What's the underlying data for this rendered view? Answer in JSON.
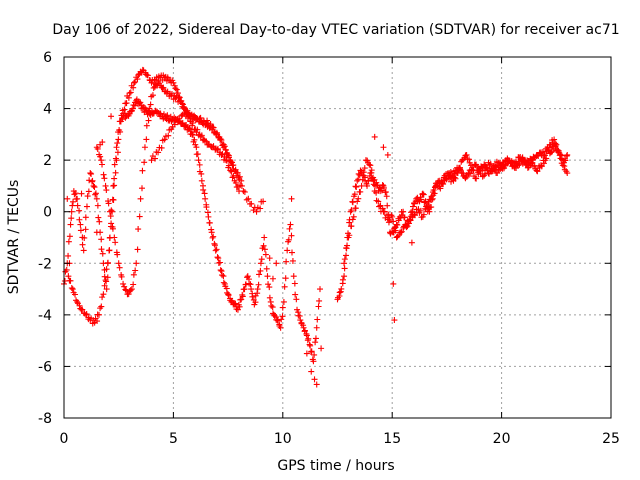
{
  "chart_data": {
    "type": "scatter",
    "title": "Day 106 of 2022, Sidereal Day-to-day VTEC variation (SDTVAR) for receiver ac71",
    "xlabel": "GPS time / hours",
    "ylabel": "SDTVAR / TECUs",
    "xlim": [
      0,
      25
    ],
    "ylim": [
      -8,
      6
    ],
    "xticks": [
      "0",
      "5",
      "10",
      "15",
      "20",
      "25"
    ],
    "yticks": [
      "-8",
      "-6",
      "-4",
      "-2",
      "0",
      "2",
      "4",
      "6"
    ],
    "grid": true,
    "marker": "+",
    "color": "#ff0000",
    "series": [
      {
        "name": "trace-1",
        "x": [
          0.0,
          0.15,
          0.3,
          0.45,
          0.6,
          0.75,
          0.9,
          1.05,
          1.2,
          1.35,
          1.5,
          1.65,
          1.8,
          1.95,
          2.1,
          2.25,
          2.4,
          2.55,
          2.7,
          2.85,
          3.0,
          3.15,
          3.3,
          3.45,
          3.6,
          3.75,
          3.9,
          4.05,
          4.2,
          4.35,
          4.5,
          4.65,
          4.8,
          4.95,
          5.1,
          5.25,
          5.4,
          5.55,
          5.7,
          5.85,
          6.0,
          6.15,
          6.3,
          6.45,
          6.6,
          6.75,
          6.9,
          7.05,
          7.2,
          7.35,
          7.5,
          7.65,
          7.8,
          7.95,
          8.1,
          8.25,
          8.4,
          8.55,
          8.7,
          8.85,
          9.0,
          9.15,
          9.3,
          9.45,
          9.6,
          9.75,
          9.9,
          10.05,
          10.2,
          10.35,
          10.5,
          10.65,
          10.8,
          10.95,
          11.1,
          11.25,
          11.4,
          11.55,
          11.7
        ],
        "values": [
          -2.8,
          -2.0,
          -0.5,
          0.8,
          0.5,
          -0.5,
          -1.5,
          0.2,
          1.5,
          1.0,
          0.5,
          -0.8,
          -2.0,
          -3.0,
          -1.0,
          1.0,
          2.5,
          3.5,
          3.8,
          3.7,
          3.8,
          4.0,
          4.3,
          4.2,
          4.0,
          3.9,
          3.8,
          3.8,
          3.9,
          3.8,
          3.7,
          3.7,
          3.6,
          3.6,
          3.6,
          3.5,
          3.4,
          3.3,
          3.2,
          3.0,
          2.6,
          2.0,
          1.2,
          0.5,
          -0.2,
          -0.8,
          -1.3,
          -1.8,
          -2.3,
          -2.8,
          -3.2,
          -3.5,
          -3.6,
          -3.8,
          -3.4,
          -3.0,
          -2.5,
          -3.0,
          -3.6,
          -3.0,
          -2.0,
          -1.0,
          -2.5,
          -3.5,
          -4.0,
          -4.2,
          -4.5,
          -3.5,
          -1.5,
          -0.5,
          -2.5,
          -3.8,
          -4.2,
          -4.5,
          -4.8,
          -5.2,
          -5.8,
          -4.5,
          -3.0
        ]
      },
      {
        "name": "trace-2",
        "x": [
          0.2,
          0.4,
          0.6,
          0.8,
          1.0,
          1.2,
          1.4,
          1.6,
          1.8,
          2.0,
          2.2,
          2.4,
          2.6,
          2.8,
          3.0,
          3.2,
          3.4,
          3.6,
          3.8,
          4.0,
          4.2,
          4.4,
          4.6,
          4.8,
          5.0,
          5.2,
          5.4,
          5.6,
          5.8,
          6.0,
          6.2,
          6.4,
          6.6,
          6.8,
          7.0,
          7.2,
          7.4,
          7.6,
          7.8,
          8.0
        ],
        "values": [
          -2.5,
          -3.0,
          -3.5,
          -3.8,
          -4.0,
          -4.2,
          -4.3,
          -4.0,
          -3.2,
          -2.0,
          0.0,
          2.0,
          3.5,
          4.2,
          4.6,
          5.0,
          5.3,
          5.5,
          5.3,
          5.0,
          5.1,
          5.2,
          5.2,
          5.1,
          5.0,
          4.6,
          4.2,
          3.8,
          3.5,
          3.2,
          3.0,
          2.8,
          2.6,
          2.5,
          2.4,
          2.2,
          2.0,
          1.6,
          1.2,
          0.8
        ]
      },
      {
        "name": "trace-3",
        "x": [
          1.5,
          1.7,
          1.9,
          2.1,
          2.3,
          2.5,
          2.7,
          2.9,
          3.1,
          3.3,
          3.5,
          3.7,
          3.9,
          4.1,
          4.3,
          4.5,
          4.7,
          4.9,
          5.1,
          5.3,
          5.5,
          5.7,
          5.9,
          6.1,
          6.3,
          6.5,
          6.7,
          6.9,
          7.1,
          7.3,
          7.5,
          7.7,
          7.9,
          8.1
        ],
        "values": [
          2.5,
          2.0,
          1.0,
          0.0,
          -1.0,
          -2.0,
          -2.8,
          -3.2,
          -3.0,
          -2.0,
          0.5,
          2.5,
          4.0,
          4.8,
          5.0,
          4.8,
          4.6,
          4.5,
          4.4,
          4.3,
          4.0,
          3.8,
          3.7,
          3.6,
          3.5,
          3.4,
          3.3,
          3.1,
          2.9,
          2.6,
          2.2,
          1.8,
          1.5,
          1.2
        ]
      },
      {
        "name": "trace-4",
        "x": [
          4.0,
          4.3,
          4.6,
          4.9,
          5.2,
          5.5,
          5.8,
          6.1,
          6.4,
          6.7,
          7.0,
          7.3,
          7.6,
          7.9,
          8.2,
          8.5,
          8.8,
          9.1
        ],
        "values": [
          2.0,
          2.3,
          2.8,
          3.2,
          3.6,
          3.8,
          3.7,
          3.6,
          3.5,
          3.4,
          3.0,
          2.5,
          2.0,
          1.4,
          0.8,
          0.3,
          0.0,
          0.4
        ]
      },
      {
        "name": "trace-5",
        "x": [
          12.5,
          12.65,
          12.8,
          12.95,
          13.1,
          13.25,
          13.4,
          13.55,
          13.7,
          13.85,
          14.0,
          14.15,
          14.3,
          14.45,
          14.6,
          14.75,
          14.9,
          15.05,
          15.2,
          15.35,
          15.5,
          15.65,
          15.8,
          15.95,
          16.1,
          16.25,
          16.4,
          16.55,
          16.7,
          16.85,
          17.0,
          17.15,
          17.3,
          17.45,
          17.6,
          17.75,
          17.9,
          18.05,
          18.2,
          18.35,
          18.5,
          18.65,
          18.8,
          18.95,
          19.1,
          19.25,
          19.4,
          19.55,
          19.7,
          19.85,
          20.0,
          20.15,
          20.3,
          20.45,
          20.6,
          20.75,
          20.9,
          21.05,
          21.2,
          21.35,
          21.5,
          21.65,
          21.8,
          21.95,
          22.1,
          22.25,
          22.4,
          22.55,
          22.7,
          22.85,
          23.0
        ],
        "values": [
          -3.4,
          -3.1,
          -2.5,
          -1.0,
          0.0,
          0.6,
          1.2,
          1.6,
          1.4,
          1.0,
          1.5,
          1.2,
          1.0,
          0.8,
          1.0,
          0.6,
          -0.8,
          -0.8,
          -0.5,
          -0.2,
          0.0,
          -0.6,
          -0.3,
          0.2,
          0.5,
          0.4,
          0.7,
          0.2,
          0.0,
          0.5,
          1.0,
          1.2,
          1.1,
          1.3,
          1.5,
          1.4,
          1.6,
          1.7,
          1.5,
          1.3,
          1.5,
          1.6,
          1.8,
          1.6,
          1.7,
          1.8,
          1.5,
          1.6,
          1.8,
          1.9,
          1.7,
          1.8,
          2.0,
          1.9,
          1.7,
          1.8,
          2.0,
          1.9,
          1.9,
          2.0,
          2.1,
          2.2,
          2.3,
          2.2,
          2.5,
          2.3,
          2.6,
          2.4,
          2.2,
          1.9,
          2.2
        ]
      },
      {
        "name": "trace-6",
        "x": [
          12.8,
          13.0,
          13.2,
          13.4,
          13.6,
          13.8,
          14.0,
          14.2,
          14.4,
          14.6,
          14.8,
          15.0,
          15.2,
          15.4,
          15.6,
          15.8,
          16.0,
          16.2,
          16.4,
          16.6,
          16.8,
          17.0,
          17.2,
          17.4,
          17.6,
          17.8,
          18.0,
          18.2,
          18.4,
          18.6,
          18.8,
          19.0,
          19.2,
          19.4,
          19.6,
          19.8,
          20.0,
          20.2,
          20.4,
          20.6,
          20.8,
          21.0,
          21.2,
          21.4,
          21.6,
          21.8,
          22.0,
          22.2,
          22.4,
          22.6,
          22.8,
          23.0
        ],
        "values": [
          -2.0,
          -1.0,
          -0.3,
          0.4,
          1.0,
          2.0,
          1.8,
          0.8,
          0.2,
          0.0,
          -0.3,
          -0.2,
          -1.0,
          -0.8,
          -0.5,
          -0.3,
          -0.1,
          0.1,
          -0.2,
          0.3,
          0.6,
          1.1,
          0.9,
          1.4,
          1.3,
          1.2,
          1.5,
          2.0,
          2.2,
          1.8,
          1.3,
          1.6,
          1.4,
          1.9,
          1.7,
          1.5,
          1.8,
          2.0,
          1.9,
          1.8,
          2.1,
          2.0,
          1.7,
          1.9,
          1.6,
          1.8,
          2.0,
          2.6,
          2.8,
          2.3,
          1.8,
          1.5
        ]
      }
    ],
    "outliers": {
      "x": [
        0.15,
        0.25,
        0.35,
        0.8,
        1.5,
        1.65,
        1.75,
        2.15,
        5.2,
        9.4,
        9.55,
        9.7,
        10.4,
        11.1,
        11.3,
        11.45,
        11.55,
        11.75,
        14.2,
        14.6,
        14.8,
        15.05,
        15.1,
        15.9
      ],
      "values": [
        0.5,
        -2.0,
        0.0,
        0.7,
        -0.8,
        2.6,
        2.7,
        3.7,
        4.6,
        -1.8,
        -2.6,
        -2.0,
        0.5,
        -5.5,
        -6.2,
        -6.5,
        -6.7,
        -5.3,
        2.9,
        2.5,
        2.2,
        -2.8,
        -4.2,
        -1.2
      ]
    }
  }
}
